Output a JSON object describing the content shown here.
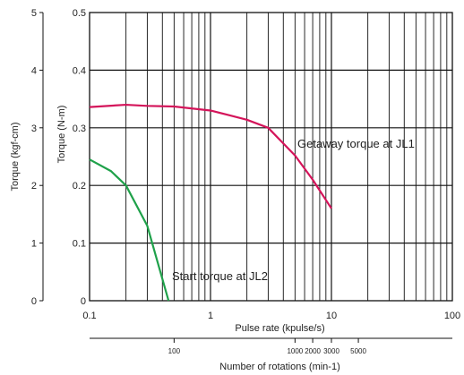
{
  "chart_data": {
    "type": "line",
    "x_scale": "log",
    "xlabel": "Pulse rate (kpulse/s)",
    "x_ticks": [
      {
        "value": 0.1,
        "label": "0.1"
      },
      {
        "value": 1,
        "label": "1"
      },
      {
        "value": 10,
        "label": "10"
      },
      {
        "value": 100,
        "label": "100"
      }
    ],
    "xlim": [
      0.1,
      100
    ],
    "ylabel": "Torque (N-m)",
    "ylim": [
      0,
      0.5
    ],
    "y_ticks": [
      {
        "value": 0,
        "label": "0"
      },
      {
        "value": 0.1,
        "label": "0.1"
      },
      {
        "value": 0.2,
        "label": "0.2"
      },
      {
        "value": 0.3,
        "label": "0.3"
      },
      {
        "value": 0.4,
        "label": "0.4"
      },
      {
        "value": 0.5,
        "label": "0.5"
      }
    ],
    "y2label": "Torque (kgf-cm)",
    "y2lim": [
      0,
      5
    ],
    "y2_ticks": [
      {
        "value": 0,
        "label": "0"
      },
      {
        "value": 1,
        "label": "1"
      },
      {
        "value": 2,
        "label": "2"
      },
      {
        "value": 3,
        "label": "3"
      },
      {
        "value": 4,
        "label": "4"
      },
      {
        "value": 5,
        "label": "5"
      }
    ],
    "x2label": "Number of rotations (min-1)",
    "x2_ticks": [
      {
        "pulse_rate": 0.5,
        "label": "100"
      },
      {
        "pulse_rate": 5,
        "label": "1000"
      },
      {
        "pulse_rate": 7,
        "label": "2000"
      },
      {
        "pulse_rate": 10,
        "label": "3000"
      },
      {
        "pulse_rate": 16.7,
        "label": "5000"
      }
    ],
    "grid": true,
    "series": [
      {
        "name": "Getaway torque at JL1",
        "color": "#d4145a",
        "x": [
          0.1,
          0.2,
          0.3,
          0.5,
          1,
          2,
          3,
          5,
          7,
          10
        ],
        "y": [
          0.336,
          0.34,
          0.338,
          0.337,
          0.33,
          0.314,
          0.3,
          0.252,
          0.21,
          0.16
        ]
      },
      {
        "name": "Start torque at JL2",
        "color": "#1fa14a",
        "x": [
          0.1,
          0.15,
          0.2,
          0.3,
          0.45
        ],
        "y": [
          0.245,
          0.225,
          0.2,
          0.13,
          0
        ]
      }
    ],
    "annotations": [
      {
        "text": "Getaway torque at JL1",
        "attached_to": 0
      },
      {
        "text": "Start torque at JL2",
        "attached_to": 1
      }
    ]
  }
}
